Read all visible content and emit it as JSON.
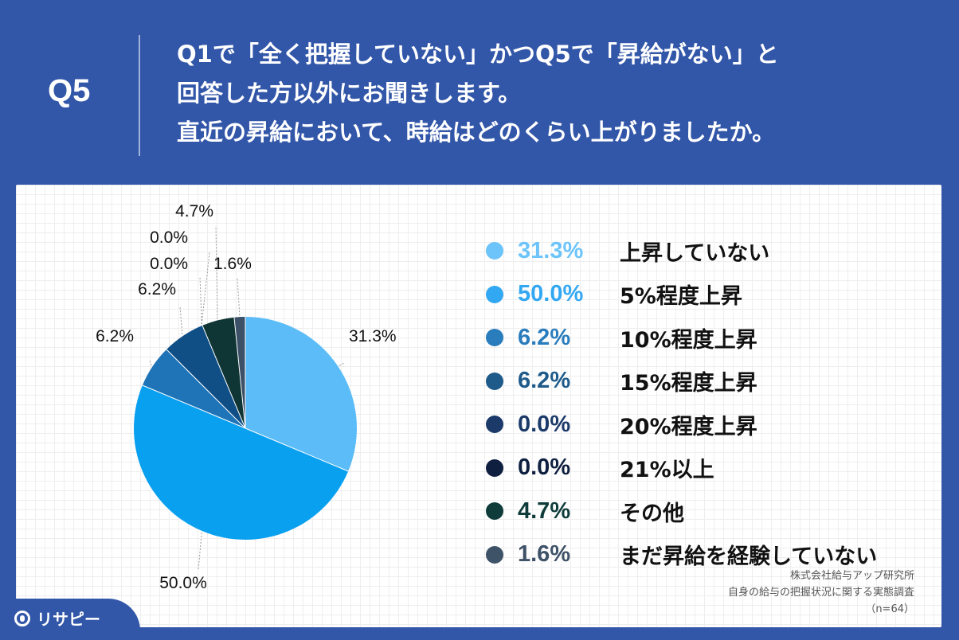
{
  "header": {
    "q_label": "Q5",
    "question_lines": [
      "Q1で「全く把握していない」かつQ5で「昇給がない」と",
      "回答した方以外にお聞きします。",
      "直近の昇給において、時給はどのくらい上がりましたか。"
    ]
  },
  "chart_data": {
    "type": "pie",
    "title": "",
    "start_angle_deg": 0,
    "direction": "clockwise",
    "slices": [
      {
        "name": "上昇していない",
        "value": 31.3,
        "label": "31.3%",
        "color": "#5bbcf8"
      },
      {
        "name": "5%程度上昇",
        "value": 50.0,
        "label": "50.0%",
        "color": "#0aa0f0"
      },
      {
        "name": "10%程度上昇",
        "value": 6.2,
        "label": "6.2%",
        "color": "#1f74b8"
      },
      {
        "name": "15%程度上昇",
        "value": 6.2,
        "label": "6.2%",
        "color": "#0f4f86"
      },
      {
        "name": "20%程度上昇",
        "value": 0.0,
        "label": "0.0%",
        "color": "#17356b"
      },
      {
        "name": "21%以上",
        "value": 0.0,
        "label": "0.0%",
        "color": "#0b1a3d"
      },
      {
        "name": "その他",
        "value": 4.7,
        "label": "4.7%",
        "color": "#0f3534"
      },
      {
        "name": "まだ昇給を経験していない",
        "value": 1.6,
        "label": "1.6%",
        "color": "#3c5068"
      }
    ]
  },
  "legend": {
    "value_colors": [
      "#6cc4fa",
      "#33a8f2",
      "#2a7dbd",
      "#1e5a8a",
      "#1b3a6a",
      "#0f1f40",
      "#0f3b3a",
      "#3e5268"
    ]
  },
  "source": {
    "lines": [
      "株式会社給与アップ研究所",
      "自身の給与の把握状況に関する実態調査",
      "（n=64）"
    ]
  },
  "logo": {
    "text": "リサピー",
    "icon": "location-pin-icon"
  }
}
